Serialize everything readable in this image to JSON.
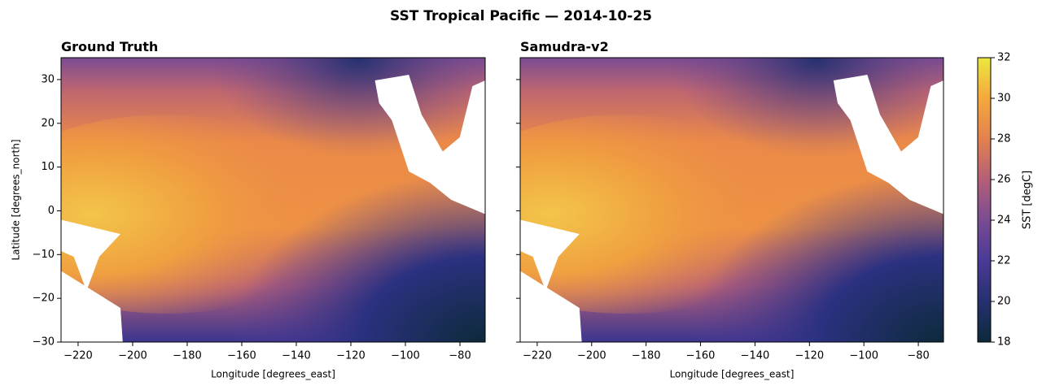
{
  "chart_data": {
    "type": "heatmap",
    "title": "SST Tropical Pacific  —  2014-10-25",
    "panels": [
      {
        "title": "Ground Truth",
        "xlabel": "Longitude [degrees_east]",
        "ylabel": "Latitude [degrees_north]",
        "xlim": [
          -226.25,
          -70.75
        ],
        "xticks": [
          {
            "value": -220,
            "label": "−220"
          },
          {
            "value": -200,
            "label": "−200"
          },
          {
            "value": -180,
            "label": "−180"
          },
          {
            "value": -160,
            "label": "−160"
          },
          {
            "value": -140,
            "label": "−140"
          },
          {
            "value": -120,
            "label": "−120"
          },
          {
            "value": -100,
            "label": "−100"
          },
          {
            "value": -80,
            "label": "−80"
          }
        ],
        "ylim": [
          -30,
          35
        ],
        "yticks": [
          {
            "value": -30,
            "label": "−30"
          },
          {
            "value": -20,
            "label": "−20"
          },
          {
            "value": -10,
            "label": "−10"
          },
          0,
          10,
          20,
          30
        ]
      },
      {
        "title": "Samudra-v2",
        "xlabel": "Longitude [degrees_east]",
        "xlim": [
          -226.25,
          -70.75
        ],
        "xticks": [
          {
            "value": -220,
            "label": "−220"
          },
          {
            "value": -200,
            "label": "−200"
          },
          {
            "value": -180,
            "label": "−180"
          },
          {
            "value": -160,
            "label": "−160"
          },
          {
            "value": -140,
            "label": "−140"
          },
          {
            "value": -120,
            "label": "−120"
          },
          {
            "value": -100,
            "label": "−100"
          },
          {
            "value": -80,
            "label": "−80"
          }
        ],
        "ylim": [
          -30,
          35
        ]
      }
    ],
    "colorbar": {
      "label": "SST [degC]",
      "lim": [
        18,
        32
      ],
      "ticks": [
        18,
        20,
        22,
        24,
        26,
        28,
        30,
        32
      ],
      "colors": [
        "#0d2a3a",
        "#25306f",
        "#4a3a97",
        "#7a4b92",
        "#b45f78",
        "#e3814f",
        "#f5a83c",
        "#ebe840"
      ]
    }
  }
}
